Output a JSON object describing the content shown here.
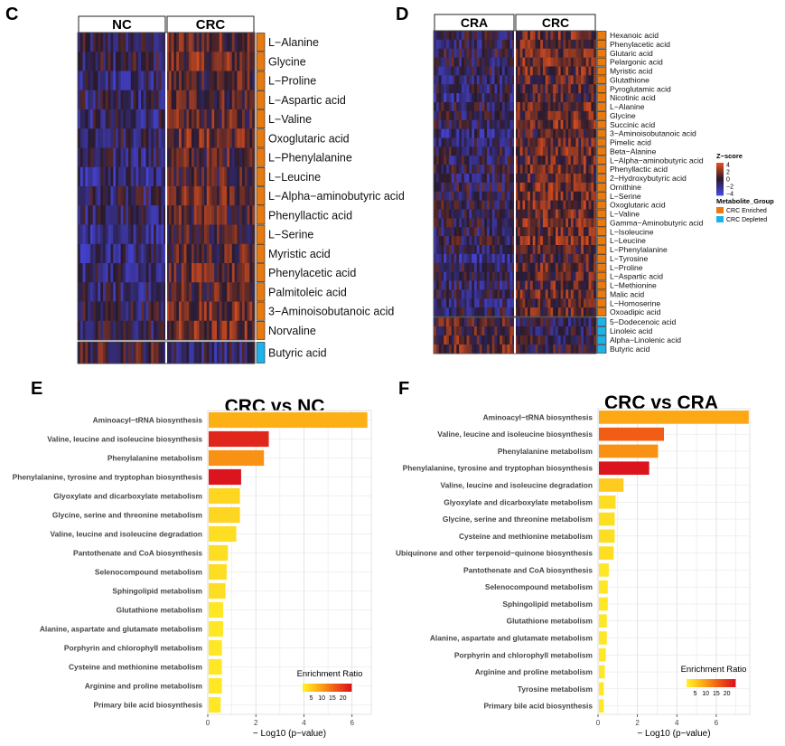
{
  "colors": {
    "orange": "#E87A10",
    "cyan": "#1EB3E8",
    "grid": "#dcdcdc",
    "axis": "#333333"
  },
  "chart_data": [
    {
      "id": "C",
      "panel_label": "C",
      "type": "heatmap",
      "groups": [
        "NC",
        "CRC"
      ],
      "rows_enriched": [
        "L−Alanine",
        "Glycine",
        "L−Proline",
        "L−Aspartic acid",
        "L−Valine",
        "Oxoglutaric acid",
        "L−Phenylalanine",
        "L−Leucine",
        "L−Alpha−aminobutyric acid",
        "Phenyllactic acid",
        "L−Serine",
        "Myristic acid",
        "Phenylacetic acid",
        "Palmitoleic acid",
        "3−Aminoisobutanoic acid",
        "Norvaline"
      ],
      "rows_depleted": [
        "Butyric acid"
      ]
    },
    {
      "id": "D",
      "panel_label": "D",
      "type": "heatmap",
      "groups": [
        "CRA",
        "CRC"
      ],
      "rows_enriched": [
        "Hexanoic acid",
        "Phenylacetic acid",
        "Glutaric acid",
        "Pelargonic acid",
        "Myristic acid",
        "Glutathione",
        "Pyroglutamic acid",
        "Nicotinic acid",
        "L−Alanine",
        "Glycine",
        "Succinic acid",
        "3−Aminoisobutanoic acid",
        "Pimelic acid",
        "Beta−Alanine",
        "L−Alpha−aminobutyric acid",
        "Phenyllactic acid",
        "2−Hydroxybutyric acid",
        "Ornithine",
        "L−Serine",
        "Oxoglutaric acid",
        "L−Valine",
        "Gamma−Aminobutyric acid",
        "L−Isoleucine",
        "L−Leucine",
        "L−Phenylalanine",
        "L−Tyrosine",
        "L−Proline",
        "L−Aspartic acid",
        "L−Methionine",
        "Malic acid",
        "L−Homoserine",
        "Oxoadipic acid"
      ],
      "rows_depleted": [
        "5−Dodecenoic acid",
        "Linoleic acid",
        "Alpha−Linolenic acid",
        "Butyric acid"
      ],
      "legend": {
        "zscore_title": "Z−score",
        "zscore_ticks": [
          "4",
          "2",
          "0",
          "−2",
          "−4"
        ],
        "group_title": "Metabolite_Group",
        "group_items": [
          "CRC Enriched",
          "CRC Depleted"
        ]
      }
    },
    {
      "id": "E",
      "panel_label": "E",
      "type": "bar",
      "title": "CRC vs NC",
      "xlabel": "− Log10 (p−value)",
      "xlim": [
        0,
        6.8
      ],
      "xticks": [
        "0",
        "2",
        "4",
        "6"
      ],
      "legend_title": "Enrichment Ratio",
      "legend_ticks": [
        "5",
        "10",
        "15",
        "20"
      ],
      "categories": [
        "Aminoacyl−tRNA biosynthesis",
        "Valine, leucine and isoleucine biosynthesis",
        "Phenylalanine metabolism",
        "Phenylalanine, tyrosine and tryptophan biosynthesis",
        "Glyoxylate and dicarboxylate metabolism",
        "Glycine, serine and threonine metabolism",
        "Valine, leucine and isoleucine degradation",
        "Pantothenate and CoA biosynthesis",
        "Selenocompound metabolism",
        "Sphingolipid metabolism",
        "Glutathione metabolism",
        "Alanine, aspartate and glutamate metabolism",
        "Porphyrin and chlorophyll metabolism",
        "Cysteine and methionine metabolism",
        "Arginine and proline metabolism",
        "Primary bile acid biosynthesis"
      ],
      "values": [
        6.6,
        2.5,
        2.3,
        1.35,
        1.3,
        1.3,
        1.15,
        0.8,
        0.75,
        0.7,
        0.6,
        0.6,
        0.55,
        0.55,
        0.55,
        0.5
      ],
      "enrichment_ratio": [
        8,
        22,
        11,
        24,
        4,
        4,
        3,
        3,
        3,
        3,
        2,
        2,
        2,
        2,
        2,
        2
      ]
    },
    {
      "id": "F",
      "panel_label": "F",
      "type": "bar",
      "title": "CRC vs CRA",
      "xlabel": "− Log10 (p−value)",
      "xlim": [
        0,
        7.7
      ],
      "xticks": [
        "0",
        "2",
        "4",
        "6"
      ],
      "legend_title": "Enrichment Ratio",
      "legend_ticks": [
        "5",
        "10",
        "15",
        "20"
      ],
      "categories": [
        "Aminoacyl−tRNA biosynthesis",
        "Valine, leucine and isoleucine biosynthesis",
        "Phenylalanine metabolism",
        "Phenylalanine, tyrosine and tryptophan biosynthesis",
        "Valine, leucine and isoleucine degradation",
        "Glyoxylate and dicarboxylate metabolism",
        "Glycine, serine and threonine metabolism",
        "Cysteine and methionine metabolism",
        "Ubiquinone and other terpenoid−quinone biosynthesis",
        "Pantothenate and CoA biosynthesis",
        "Selenocompound metabolism",
        "Sphingolipid metabolism",
        "Glutathione metabolism",
        "Alanine, aspartate and glutamate metabolism",
        "Porphyrin and chlorophyll metabolism",
        "Arginine and proline metabolism",
        "Tyrosine metabolism",
        "Primary bile acid biosynthesis"
      ],
      "values": [
        7.6,
        3.3,
        3.0,
        2.55,
        1.25,
        0.85,
        0.8,
        0.8,
        0.75,
        0.5,
        0.45,
        0.45,
        0.4,
        0.4,
        0.35,
        0.3,
        0.25,
        0.25
      ],
      "enrichment_ratio": [
        9,
        16,
        11,
        24,
        5,
        3,
        3,
        3,
        3,
        2,
        2,
        2,
        2,
        2,
        2,
        2,
        2,
        2
      ]
    }
  ]
}
